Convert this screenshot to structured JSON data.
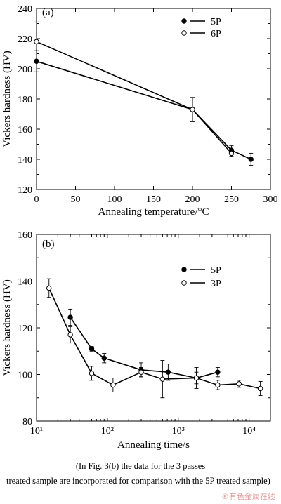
{
  "chart_data": [
    {
      "type": "line",
      "panel_label": "(a)",
      "xlabel": "Annealing temperature/°C",
      "ylabel": "Vickers hardness (HV)",
      "xlim": [
        0,
        300
      ],
      "ylim": [
        120,
        240
      ],
      "xticks": [
        0,
        50,
        100,
        150,
        200,
        250,
        300
      ],
      "yticks": [
        120,
        140,
        160,
        180,
        200,
        220,
        240
      ],
      "x_scale": "linear",
      "legend_position": "top-right",
      "series": [
        {
          "name": "5P",
          "marker": "filled-circle",
          "x": [
            0,
            200,
            250,
            275
          ],
          "y": [
            205,
            173,
            146,
            140
          ],
          "err": [
            7,
            8,
            3,
            4
          ]
        },
        {
          "name": "6P",
          "marker": "open-circle",
          "x": [
            0,
            200,
            250
          ],
          "y": [
            218,
            173,
            144
          ],
          "err": [
            13,
            8,
            2
          ]
        }
      ]
    },
    {
      "type": "line",
      "panel_label": "(b)",
      "xlabel": "Annealing time/s",
      "ylabel": "Vickers hardness (HV)",
      "xlim": [
        10,
        20000
      ],
      "ylim": [
        80,
        160
      ],
      "xticks": [
        10,
        100,
        1000,
        10000
      ],
      "xtick_labels": [
        "10¹",
        "10²",
        "10³",
        "10⁴"
      ],
      "yticks": [
        80,
        100,
        120,
        140,
        160
      ],
      "x_scale": "log",
      "legend_position": "top-right",
      "series": [
        {
          "name": "5P",
          "marker": "filled-circle",
          "x": [
            30,
            60,
            90,
            300,
            720,
            1800,
            3600
          ],
          "y": [
            124.5,
            111,
            107,
            102,
            101,
            98.5,
            101
          ],
          "err": [
            3.5,
            1,
            2,
            3,
            3.5,
            4.5,
            2
          ]
        },
        {
          "name": "3P",
          "marker": "open-circle",
          "x": [
            15,
            30,
            60,
            120,
            300,
            600,
            1800,
            3600,
            7200,
            14400
          ],
          "y": [
            137,
            117,
            100.5,
            95.5,
            101,
            98,
            98.5,
            95.5,
            96,
            94
          ],
          "err": [
            4,
            3.5,
            3,
            3,
            2,
            8,
            2.5,
            2,
            1.5,
            3
          ]
        }
      ]
    }
  ],
  "caption": {
    "line1": "(In Fig. 3(b) the data for the 3 passes",
    "line2": "treated sample are incorporated for comparison with the 5P treated sample)"
  },
  "watermark": "®有色金属在线"
}
